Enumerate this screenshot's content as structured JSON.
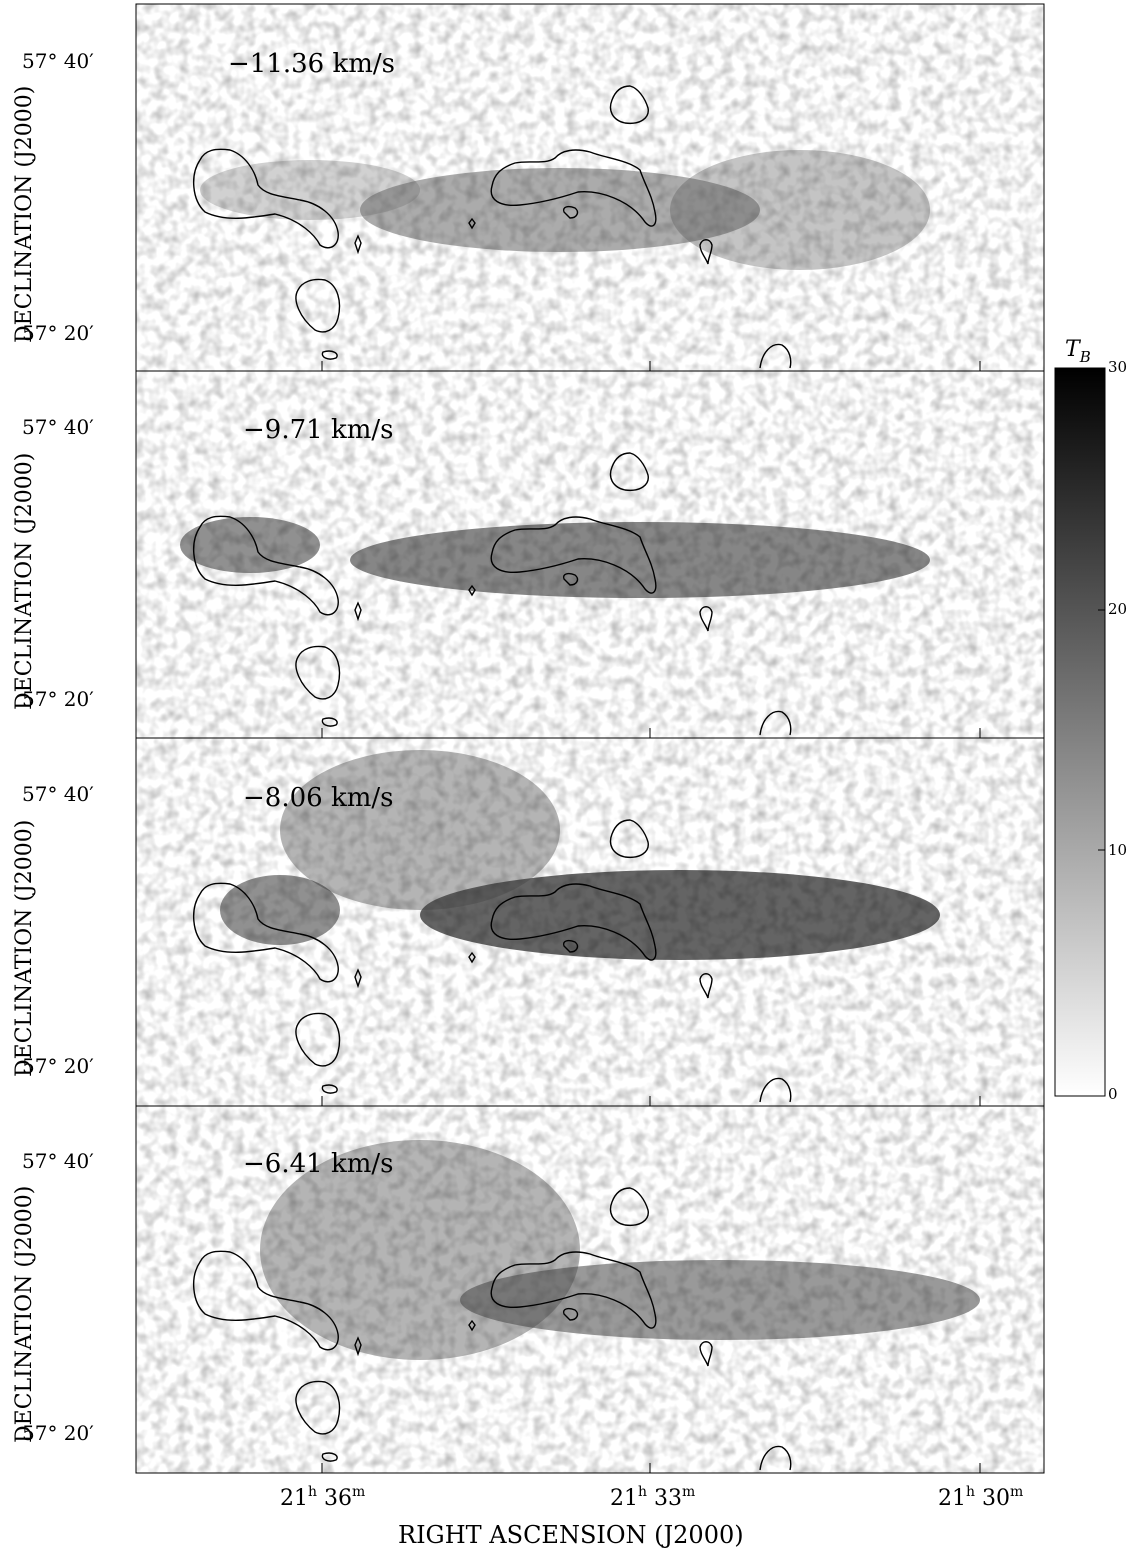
{
  "figure": {
    "panels": [
      {
        "velocity_label": "−11.36 km/s",
        "dec_ticks": [
          "57° 40′",
          "57° 20′"
        ],
        "ylabel": "DECLINATION (J2000)"
      },
      {
        "velocity_label": "−9.71 km/s",
        "dec_ticks": [
          "57° 40′",
          "57° 20′"
        ],
        "ylabel": "DECLINATION (J2000)"
      },
      {
        "velocity_label": "−8.06 km/s",
        "dec_ticks": [
          "57° 40′",
          "57° 20′"
        ],
        "ylabel": "DECLINATION (J2000)"
      },
      {
        "velocity_label": "−6.41 km/s",
        "dec_ticks": [
          "57° 40′",
          "57° 20′"
        ],
        "ylabel": "DECLINATION (J2000)"
      }
    ],
    "ra_ticks": [
      {
        "h": "21",
        "m": "36"
      },
      {
        "h": "21",
        "m": "33"
      },
      {
        "h": "21",
        "m": "30"
      }
    ],
    "xlabel": "RIGHT ASCENSION (J2000)",
    "colorbar": {
      "title": "T",
      "title_sub": "B",
      "ticks": [
        "30",
        "20",
        "10",
        "0"
      ],
      "range": [
        0,
        30
      ]
    }
  }
}
